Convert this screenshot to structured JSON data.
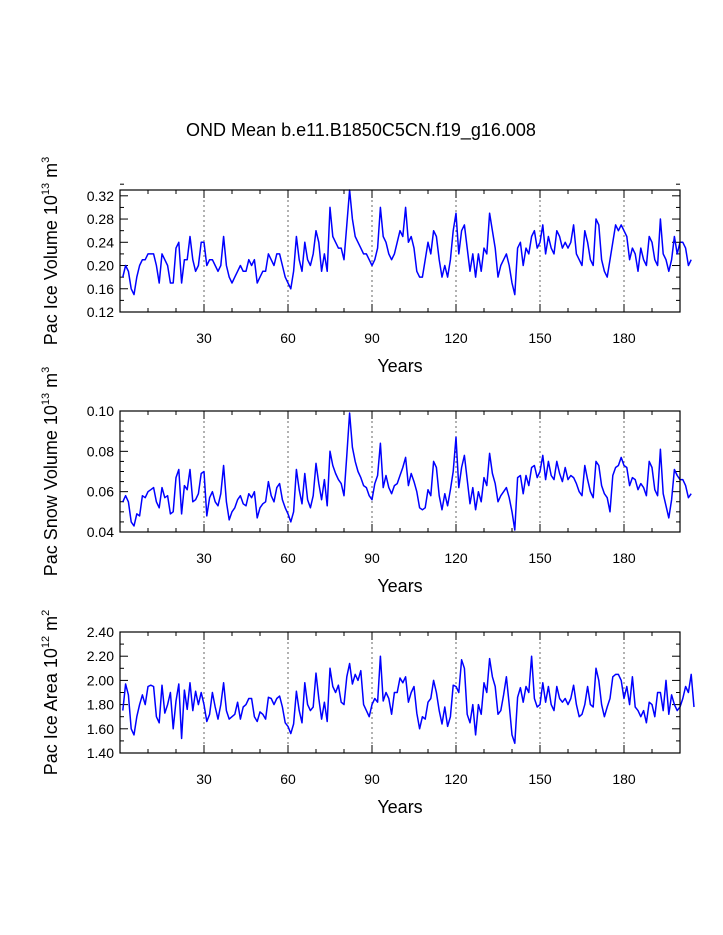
{
  "title": "OND Mean b.e11.B1850C5CN.f19_g16.008",
  "chart_data": [
    {
      "type": "line",
      "ylabel_main": "Pac Ice Volume 10",
      "ylabel_exp": "13",
      "ylabel_unit": " m",
      "ylabel_unit_exp": "3",
      "xlabel": "Years",
      "xlim": [
        0,
        200
      ],
      "ylim": [
        0.12,
        0.33
      ],
      "xticks": [
        30,
        60,
        90,
        120,
        150,
        180
      ],
      "yticks": [
        0.12,
        0.16,
        0.2,
        0.24,
        0.28,
        0.32
      ],
      "ytick_labels": [
        "0.12",
        "0.16",
        "0.20",
        "0.24",
        "0.28",
        "0.32"
      ],
      "ytick_minor": 0.02,
      "color": "#0000ff",
      "values": [
        0.18,
        0.2,
        0.19,
        0.16,
        0.15,
        0.18,
        0.2,
        0.21,
        0.21,
        0.22,
        0.22,
        0.22,
        0.2,
        0.17,
        0.22,
        0.21,
        0.2,
        0.17,
        0.17,
        0.23,
        0.24,
        0.17,
        0.21,
        0.21,
        0.25,
        0.21,
        0.19,
        0.2,
        0.24,
        0.24,
        0.2,
        0.21,
        0.21,
        0.2,
        0.19,
        0.2,
        0.25,
        0.2,
        0.18,
        0.17,
        0.18,
        0.19,
        0.2,
        0.19,
        0.19,
        0.21,
        0.2,
        0.21,
        0.17,
        0.18,
        0.19,
        0.19,
        0.22,
        0.21,
        0.2,
        0.22,
        0.22,
        0.2,
        0.18,
        0.17,
        0.16,
        0.19,
        0.25,
        0.21,
        0.19,
        0.24,
        0.21,
        0.2,
        0.22,
        0.26,
        0.24,
        0.19,
        0.22,
        0.19,
        0.3,
        0.25,
        0.24,
        0.23,
        0.23,
        0.21,
        0.27,
        0.33,
        0.28,
        0.25,
        0.24,
        0.23,
        0.22,
        0.22,
        0.21,
        0.2,
        0.21,
        0.23,
        0.3,
        0.25,
        0.24,
        0.22,
        0.21,
        0.22,
        0.24,
        0.26,
        0.25,
        0.3,
        0.24,
        0.25,
        0.23,
        0.19,
        0.18,
        0.18,
        0.21,
        0.24,
        0.22,
        0.26,
        0.25,
        0.21,
        0.18,
        0.2,
        0.18,
        0.21,
        0.26,
        0.29,
        0.22,
        0.26,
        0.27,
        0.23,
        0.19,
        0.22,
        0.18,
        0.22,
        0.19,
        0.23,
        0.22,
        0.29,
        0.26,
        0.23,
        0.18,
        0.2,
        0.21,
        0.22,
        0.2,
        0.17,
        0.15,
        0.23,
        0.24,
        0.2,
        0.23,
        0.22,
        0.25,
        0.26,
        0.23,
        0.24,
        0.27,
        0.22,
        0.25,
        0.23,
        0.22,
        0.26,
        0.25,
        0.23,
        0.24,
        0.23,
        0.24,
        0.27,
        0.22,
        0.21,
        0.2,
        0.26,
        0.24,
        0.21,
        0.2,
        0.28,
        0.27,
        0.21,
        0.19,
        0.18,
        0.21,
        0.24,
        0.27,
        0.26,
        0.27,
        0.26,
        0.25,
        0.21,
        0.23,
        0.22,
        0.19,
        0.23,
        0.21,
        0.2,
        0.25,
        0.24,
        0.21,
        0.2,
        0.28,
        0.22,
        0.21,
        0.19,
        0.21,
        0.25,
        0.22,
        0.24,
        0.24,
        0.23,
        0.2,
        0.21
      ]
    },
    {
      "type": "line",
      "ylabel_main": "Pac Snow Volume 10",
      "ylabel_exp": "13",
      "ylabel_unit": " m",
      "ylabel_unit_exp": "3",
      "xlabel": "Years",
      "xlim": [
        0,
        200
      ],
      "ylim": [
        0.04,
        0.1
      ],
      "xticks": [
        30,
        60,
        90,
        120,
        150,
        180
      ],
      "yticks": [
        0.04,
        0.06,
        0.08,
        0.1
      ],
      "ytick_labels": [
        "0.04",
        "0.06",
        "0.08",
        "0.10"
      ],
      "ytick_minor": 0.005,
      "color": "#0000ff",
      "values": [
        0.055,
        0.058,
        0.055,
        0.045,
        0.043,
        0.049,
        0.048,
        0.058,
        0.057,
        0.06,
        0.061,
        0.062,
        0.055,
        0.052,
        0.062,
        0.057,
        0.058,
        0.049,
        0.05,
        0.067,
        0.071,
        0.049,
        0.063,
        0.061,
        0.071,
        0.055,
        0.056,
        0.059,
        0.069,
        0.07,
        0.048,
        0.057,
        0.06,
        0.055,
        0.053,
        0.059,
        0.073,
        0.055,
        0.046,
        0.05,
        0.052,
        0.056,
        0.058,
        0.054,
        0.053,
        0.059,
        0.057,
        0.06,
        0.047,
        0.052,
        0.054,
        0.055,
        0.065,
        0.058,
        0.055,
        0.062,
        0.064,
        0.056,
        0.052,
        0.049,
        0.045,
        0.05,
        0.071,
        0.061,
        0.054,
        0.069,
        0.056,
        0.052,
        0.058,
        0.074,
        0.064,
        0.056,
        0.066,
        0.053,
        0.08,
        0.073,
        0.069,
        0.066,
        0.064,
        0.058,
        0.078,
        0.099,
        0.082,
        0.075,
        0.07,
        0.067,
        0.063,
        0.062,
        0.058,
        0.056,
        0.064,
        0.068,
        0.084,
        0.062,
        0.068,
        0.062,
        0.059,
        0.063,
        0.064,
        0.068,
        0.072,
        0.077,
        0.063,
        0.069,
        0.065,
        0.06,
        0.052,
        0.051,
        0.052,
        0.061,
        0.058,
        0.075,
        0.072,
        0.058,
        0.051,
        0.059,
        0.053,
        0.061,
        0.07,
        0.087,
        0.062,
        0.072,
        0.078,
        0.066,
        0.054,
        0.062,
        0.051,
        0.06,
        0.055,
        0.067,
        0.063,
        0.079,
        0.069,
        0.064,
        0.055,
        0.058,
        0.06,
        0.062,
        0.057,
        0.05,
        0.041,
        0.067,
        0.068,
        0.059,
        0.068,
        0.063,
        0.072,
        0.073,
        0.067,
        0.07,
        0.078,
        0.066,
        0.075,
        0.068,
        0.066,
        0.075,
        0.069,
        0.065,
        0.072,
        0.066,
        0.068,
        0.067,
        0.064,
        0.06,
        0.058,
        0.073,
        0.066,
        0.06,
        0.057,
        0.075,
        0.073,
        0.063,
        0.059,
        0.057,
        0.05,
        0.068,
        0.072,
        0.073,
        0.077,
        0.073,
        0.072,
        0.063,
        0.067,
        0.066,
        0.061,
        0.064,
        0.062,
        0.058,
        0.075,
        0.072,
        0.061,
        0.058,
        0.081,
        0.059,
        0.053,
        0.047,
        0.056,
        0.071,
        0.068,
        0.066,
        0.066,
        0.063,
        0.057,
        0.059
      ]
    },
    {
      "type": "line",
      "ylabel_main": "Pac Ice Area 10",
      "ylabel_exp": "12",
      "ylabel_unit": " m",
      "ylabel_unit_exp": "2",
      "xlabel": "Years",
      "xlim": [
        0,
        200
      ],
      "ylim": [
        1.4,
        2.4
      ],
      "xticks": [
        30,
        60,
        90,
        120,
        150,
        180
      ],
      "yticks": [
        1.4,
        1.6,
        1.8,
        2.0,
        2.2,
        2.4
      ],
      "ytick_labels": [
        "1.40",
        "1.60",
        "1.80",
        "2.00",
        "2.20",
        "2.40"
      ],
      "ytick_minor": 0.1,
      "color": "#0000ff",
      "values": [
        1.75,
        1.97,
        1.88,
        1.6,
        1.55,
        1.7,
        1.8,
        1.88,
        1.8,
        1.95,
        1.96,
        1.95,
        1.7,
        1.65,
        1.96,
        1.73,
        1.8,
        1.9,
        1.6,
        1.83,
        1.97,
        1.52,
        1.92,
        1.76,
        1.98,
        1.75,
        1.91,
        1.8,
        1.9,
        1.8,
        1.66,
        1.72,
        1.9,
        1.78,
        1.68,
        1.8,
        1.98,
        1.75,
        1.68,
        1.7,
        1.72,
        1.82,
        1.68,
        1.78,
        1.8,
        1.85,
        1.85,
        1.7,
        1.66,
        1.74,
        1.72,
        1.68,
        1.86,
        1.85,
        1.8,
        1.85,
        1.87,
        1.78,
        1.65,
        1.62,
        1.56,
        1.64,
        1.91,
        1.75,
        1.65,
        1.98,
        1.8,
        1.75,
        1.78,
        2.06,
        1.85,
        1.68,
        1.82,
        1.66,
        2.1,
        1.95,
        1.9,
        1.96,
        1.82,
        1.8,
        2.03,
        2.14,
        1.97,
        2.05,
        2.0,
        2.08,
        1.8,
        1.75,
        1.7,
        1.8,
        1.85,
        1.82,
        2.2,
        1.83,
        1.9,
        1.85,
        1.72,
        1.9,
        1.9,
        2.02,
        1.98,
        2.03,
        1.82,
        1.9,
        1.95,
        1.73,
        1.6,
        1.7,
        1.68,
        1.82,
        1.85,
        2.0,
        1.9,
        1.75,
        1.64,
        1.78,
        1.62,
        1.7,
        1.96,
        1.95,
        1.9,
        2.17,
        2.1,
        1.72,
        1.65,
        1.8,
        1.55,
        1.8,
        1.72,
        1.98,
        1.9,
        2.18,
        2.03,
        1.95,
        1.72,
        1.75,
        1.88,
        2.03,
        1.8,
        1.55,
        1.48,
        1.86,
        1.94,
        1.82,
        1.95,
        1.9,
        2.2,
        1.85,
        1.78,
        1.8,
        1.98,
        1.82,
        1.95,
        1.8,
        1.75,
        1.95,
        1.85,
        1.82,
        1.85,
        1.8,
        1.85,
        1.96,
        1.8,
        1.7,
        1.72,
        1.8,
        1.95,
        1.8,
        1.78,
        2.1,
        2.0,
        1.8,
        1.7,
        1.78,
        1.85,
        2.03,
        2.05,
        2.05,
        2.0,
        1.85,
        1.95,
        1.8,
        2.03,
        1.78,
        1.75,
        1.7,
        1.75,
        1.65,
        1.82,
        1.8,
        1.7,
        1.9,
        1.9,
        1.75,
        2.0,
        1.72,
        1.88,
        1.8,
        1.75,
        1.78,
        1.85,
        1.95,
        1.9,
        2.05,
        1.78
      ]
    }
  ]
}
